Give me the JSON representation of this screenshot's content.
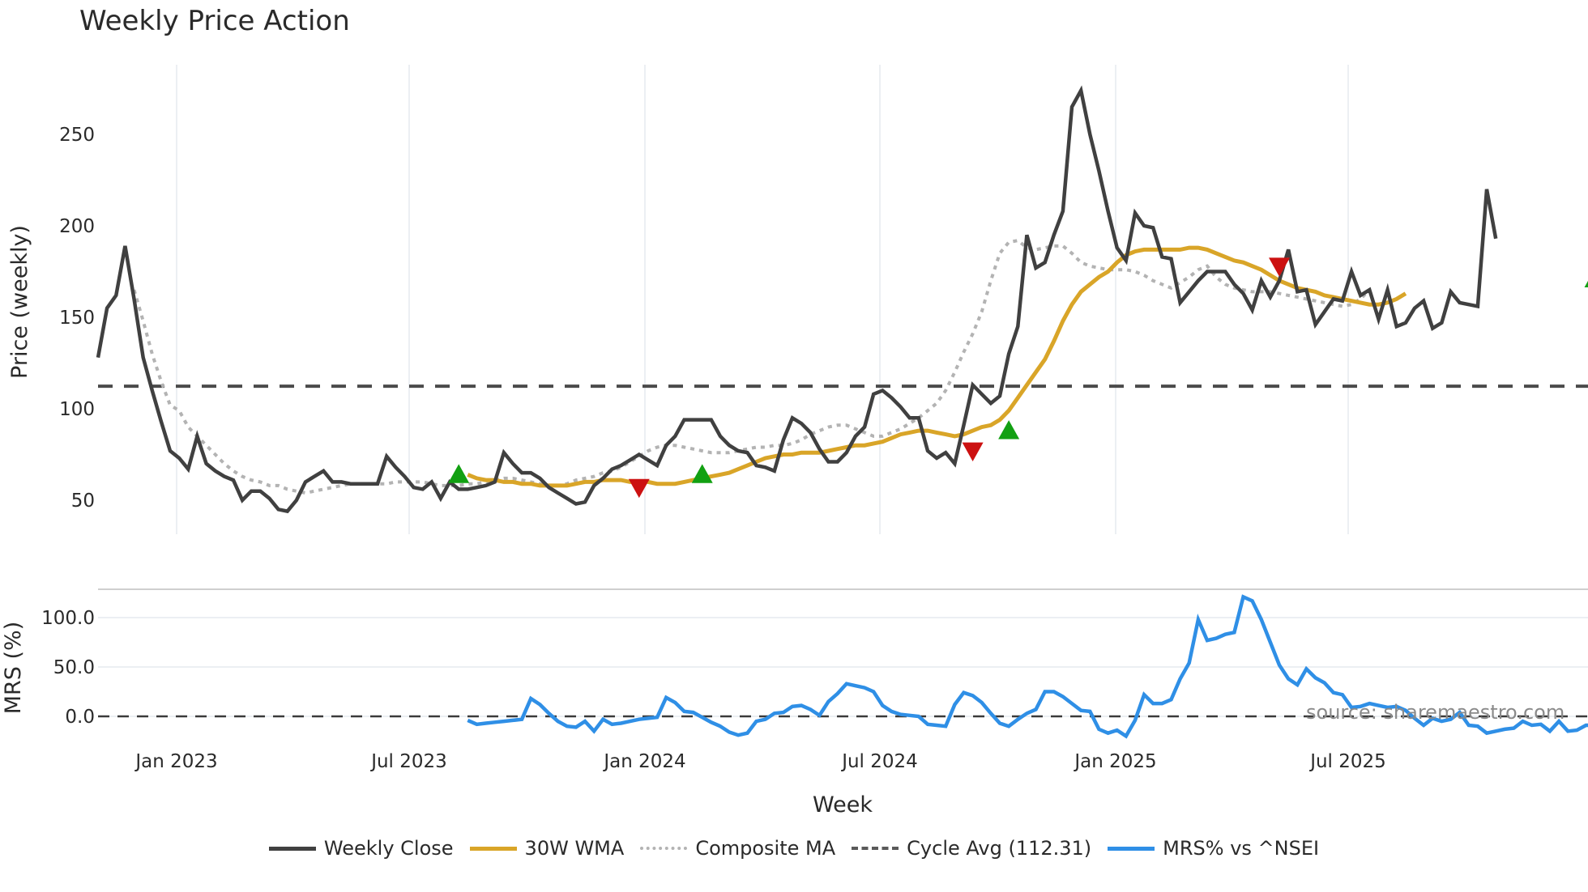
{
  "title": "Weekly Price Action",
  "source_note": "source: sharemaestro.com",
  "colors": {
    "close": "#404040",
    "wma": "#d9a528",
    "composite": "#b3b3b3",
    "cycle": "#4a4a4a",
    "mrs": "#2f8fe6",
    "buy": "#12a012",
    "sell": "#cc1111",
    "grid": "#eceff3"
  },
  "legend": [
    {
      "key": "close",
      "label": "Weekly Close",
      "style": "solid"
    },
    {
      "key": "wma",
      "label": "30W WMA",
      "style": "solid"
    },
    {
      "key": "composite",
      "label": "Composite MA",
      "style": "dotted"
    },
    {
      "key": "cycle",
      "label": "Cycle Avg (112.31)",
      "style": "dashed"
    },
    {
      "key": "mrs",
      "label": "MRS% vs ^NSEI",
      "style": "solid"
    }
  ],
  "axes": {
    "price_ylabel": "Price (weekly)",
    "mrs_ylabel": "MRS (%)",
    "xlabel": "Week",
    "price_ticks": [
      "50",
      "100",
      "150",
      "200",
      "250"
    ],
    "mrs_ticks": [
      "0.0",
      "50.0",
      "100.0"
    ],
    "x_ticks": [
      "Jan 2023",
      "Jul 2023",
      "Jan 2024",
      "Jul 2024",
      "Jan 2025",
      "Jul 2025"
    ]
  },
  "chart_data": [
    {
      "type": "line",
      "title": "Weekly Price Action",
      "xlabel": "Week",
      "ylabel": "Price (weekly)",
      "ylim": [
        30,
        280
      ],
      "x_ticks": [
        "Jan 2023",
        "Jul 2023",
        "Jan 2024",
        "Jul 2024",
        "Jan 2025",
        "Jul 2025"
      ],
      "x_start": "2022-09 (week index 0)",
      "reference_line": {
        "name": "Cycle Avg (112.31)",
        "value": 112.31,
        "style": "dashed"
      },
      "series": [
        {
          "name": "Weekly Close",
          "start_index": 0,
          "values": [
            128,
            155,
            162,
            189,
            160,
            128,
            110,
            93,
            77,
            73,
            67,
            85,
            70,
            66,
            63,
            61,
            50,
            55,
            55,
            51,
            45,
            44,
            50,
            60,
            63,
            66,
            60,
            60,
            59,
            59,
            59,
            59,
            74,
            68,
            63,
            57,
            56,
            60,
            51,
            60,
            56,
            56,
            57,
            58,
            60,
            76,
            70,
            65,
            65,
            62,
            57,
            54,
            51,
            48,
            49,
            58,
            62,
            67,
            69,
            72,
            75,
            72,
            69,
            80,
            85,
            94,
            94,
            94,
            94,
            85,
            80,
            77,
            76,
            69,
            68,
            66,
            83,
            95,
            92,
            87,
            78,
            71,
            71,
            76,
            85,
            90,
            108,
            110,
            106,
            101,
            95,
            95,
            77,
            73,
            76,
            70,
            91,
            113,
            108,
            103,
            107,
            130,
            145,
            195,
            177,
            180,
            195,
            208,
            265,
            274,
            250,
            230,
            208,
            188,
            181,
            207,
            200,
            199,
            183,
            182,
            158,
            164,
            170,
            175,
            175,
            175,
            168,
            163,
            154,
            170,
            161,
            170,
            187,
            164,
            165,
            146,
            153,
            160,
            159,
            175,
            162,
            165,
            149,
            165,
            145,
            147,
            155,
            159,
            144,
            147,
            164,
            158,
            157,
            156,
            220,
            193
          ]
        },
        {
          "name": "30W WMA",
          "start_index": 41,
          "values": [
            64,
            62,
            61,
            61,
            60,
            60,
            59,
            59,
            58,
            58,
            58,
            58,
            59,
            60,
            60,
            61,
            61,
            61,
            60,
            60,
            60,
            59,
            59,
            59,
            60,
            61,
            62,
            63,
            64,
            65,
            67,
            69,
            71,
            73,
            74,
            75,
            75,
            76,
            76,
            76,
            77,
            78,
            79,
            80,
            80,
            81,
            82,
            84,
            86,
            87,
            88,
            88,
            87,
            86,
            85,
            86,
            88,
            90,
            91,
            94,
            99,
            106,
            113,
            120,
            127,
            137,
            148,
            157,
            164,
            168,
            172,
            175,
            180,
            184,
            186,
            187,
            187,
            187,
            187,
            187,
            188,
            188,
            187,
            185,
            183,
            181,
            180,
            178,
            176,
            173,
            170,
            168,
            166,
            165,
            164,
            162,
            161,
            160,
            159,
            158,
            157,
            157,
            158,
            160,
            163
          ]
        },
        {
          "name": "Composite MA",
          "start_index": 4,
          "values": [
            165,
            148,
            130,
            115,
            102,
            99,
            90,
            85,
            80,
            75,
            70,
            66,
            63,
            61,
            60,
            58,
            58,
            56,
            55,
            54,
            55,
            56,
            57,
            58,
            59,
            59,
            59,
            59,
            59,
            60,
            60,
            60,
            60,
            59,
            58,
            58,
            58,
            59,
            59,
            60,
            61,
            62,
            62,
            61,
            60,
            59,
            58,
            58,
            59,
            61,
            62,
            63,
            65,
            66,
            68,
            71,
            74,
            77,
            79,
            80,
            80,
            79,
            78,
            77,
            76,
            76,
            76,
            77,
            78,
            79,
            79,
            80,
            80,
            81,
            83,
            86,
            88,
            90,
            91,
            91,
            89,
            87,
            85,
            85,
            87,
            89,
            92,
            95,
            99,
            103,
            110,
            120,
            131,
            141,
            153,
            170,
            185,
            191,
            192,
            188,
            187,
            188,
            189,
            189,
            185,
            180,
            178,
            177,
            176,
            176,
            176,
            175,
            173,
            170,
            168,
            166,
            169,
            172,
            176,
            178,
            172,
            168,
            166,
            165,
            164,
            164,
            164,
            163,
            162,
            161,
            160,
            159,
            158,
            157,
            156,
            157,
            160,
            165
          ]
        }
      ],
      "markers": [
        {
          "type": "buy",
          "index": 40,
          "value": 64
        },
        {
          "type": "sell",
          "index": 60,
          "value": 57
        },
        {
          "type": "buy",
          "index": 67,
          "value": 64
        },
        {
          "type": "sell",
          "index": 97,
          "value": 77
        },
        {
          "type": "buy",
          "index": 101,
          "value": 88
        },
        {
          "type": "sell",
          "index": 131,
          "value": 178
        },
        {
          "type": "buy",
          "index": 166,
          "value": 171
        }
      ]
    },
    {
      "type": "line",
      "title": "",
      "xlabel": "Week",
      "ylabel": "MRS (%)",
      "ylim": [
        -30,
        128
      ],
      "reference_line": {
        "value": 0,
        "style": "dashed"
      },
      "series": [
        {
          "name": "MRS% vs ^NSEI",
          "start_index": 41,
          "values": [
            -4,
            -8,
            -7,
            -6,
            -5,
            -4,
            -3,
            18,
            12,
            3,
            -5,
            -10,
            -11,
            -5,
            -15,
            -3,
            -8,
            -7,
            -5,
            -3,
            -2,
            -1,
            19,
            14,
            5,
            4,
            -1,
            -6,
            -10,
            -16,
            -19,
            -17,
            -5,
            -3,
            3,
            4,
            10,
            11,
            7,
            1,
            15,
            23,
            33,
            31,
            29,
            25,
            11,
            5,
            2,
            1,
            0,
            -8,
            -9,
            -10,
            12,
            24,
            21,
            14,
            3,
            -7,
            -10,
            -3,
            3,
            7,
            25,
            25,
            20,
            13,
            6,
            5,
            -13,
            -17,
            -14,
            -20,
            -4,
            22,
            13,
            13,
            17,
            38,
            54,
            98,
            77,
            79,
            83,
            85,
            121,
            117,
            98,
            75,
            52,
            38,
            32,
            48,
            39,
            34,
            24,
            22,
            9,
            10,
            13,
            11,
            9,
            10,
            6,
            -2,
            -9,
            -2,
            -5,
            -3,
            4,
            -9,
            -10,
            -17,
            -15,
            -13,
            -12,
            -5,
            -9,
            -8,
            -15,
            -5,
            -15,
            -14,
            -9,
            -9,
            -17,
            -15,
            -3,
            -7,
            -9,
            -10,
            23,
            10
          ]
        }
      ]
    }
  ]
}
